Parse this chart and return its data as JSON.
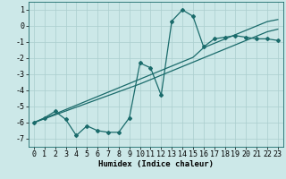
{
  "xlabel": "Humidex (Indice chaleur)",
  "bg_color": "#cce8e8",
  "line_color": "#1a6b6b",
  "grid_color": "#aacece",
  "x_data": [
    0,
    1,
    2,
    3,
    4,
    5,
    6,
    7,
    8,
    9,
    10,
    11,
    12,
    13,
    14,
    15,
    16,
    17,
    18,
    19,
    20,
    21,
    22,
    23
  ],
  "y_curve": [
    -6.0,
    -5.7,
    -5.3,
    -5.8,
    -6.8,
    -6.2,
    -6.5,
    -6.6,
    -6.6,
    -5.7,
    -2.3,
    -2.6,
    -4.3,
    0.3,
    1.0,
    0.6,
    -1.3,
    -0.8,
    -0.7,
    -0.6,
    -0.7,
    -0.8,
    -0.8,
    -0.9
  ],
  "y_line1": [
    -6.0,
    -5.73,
    -5.46,
    -5.19,
    -4.92,
    -4.65,
    -4.38,
    -4.11,
    -3.84,
    -3.57,
    -3.3,
    -3.03,
    -2.76,
    -2.49,
    -2.22,
    -1.95,
    -1.35,
    -1.08,
    -0.81,
    -0.54,
    -0.27,
    0.0,
    0.27,
    0.4
  ],
  "y_line2": [
    -6.0,
    -5.76,
    -5.52,
    -5.28,
    -5.04,
    -4.8,
    -4.56,
    -4.32,
    -4.08,
    -3.84,
    -3.6,
    -3.33,
    -3.06,
    -2.79,
    -2.52,
    -2.25,
    -1.98,
    -1.71,
    -1.44,
    -1.17,
    -0.9,
    -0.63,
    -0.36,
    -0.2
  ],
  "ylim": [
    -7.5,
    1.5
  ],
  "xlim": [
    -0.5,
    23.5
  ],
  "yticks": [
    1,
    0,
    -1,
    -2,
    -3,
    -4,
    -5,
    -6,
    -7
  ],
  "xticks": [
    0,
    1,
    2,
    3,
    4,
    5,
    6,
    7,
    8,
    9,
    10,
    11,
    12,
    13,
    14,
    15,
    16,
    17,
    18,
    19,
    20,
    21,
    22,
    23
  ],
  "marker": "D",
  "markersize": 2.0,
  "linewidth": 0.9,
  "xlabel_fontsize": 6.5,
  "tick_fontsize": 6.0
}
